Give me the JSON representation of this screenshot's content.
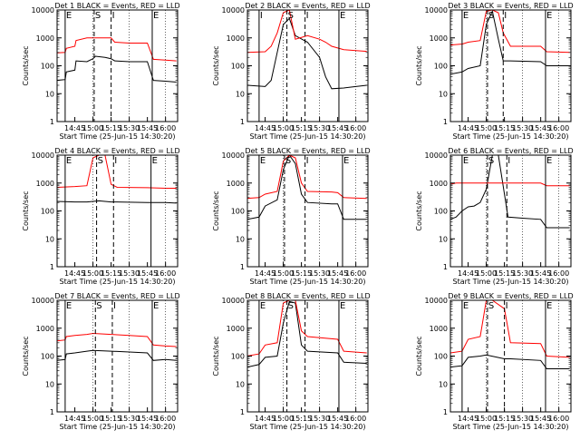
{
  "figure": {
    "x_label": "Start Time (25-Jun-15 14:30:20)",
    "y_label": "Counts/sec"
  },
  "colors": {
    "events": "#000000",
    "lld": "#ff0000",
    "axes": "#000000",
    "background": "#ffffff"
  },
  "chart_data": [
    {
      "type": "line",
      "title": "Det 1  BLACK = Events, RED = LLD",
      "xlabel": "Start Time (25-Jun-15 14:30:20)",
      "ylabel": "Counts/sec",
      "yscale": "log",
      "ylim": [
        1,
        10000
      ],
      "xlim": [
        "14:30:20",
        "16:10:00"
      ],
      "x_ticks": [
        "14:45",
        "15:00",
        "15:15",
        "15:30",
        "15:45",
        "16:00"
      ],
      "y_ticks": [
        "1",
        "10",
        "100",
        "1000",
        "10000"
      ],
      "markers": [
        {
          "time": "14:37",
          "label": "E"
        },
        {
          "time": "15:01",
          "label": "S"
        },
        {
          "time": "15:15",
          "label": "I"
        },
        {
          "time": "15:49",
          "label": "E"
        }
      ],
      "series": [
        {
          "name": "Events",
          "color": "#000000",
          "x": [
            "14:30",
            "14:37",
            "14:38",
            "14:45",
            "14:46",
            "14:55",
            "15:00",
            "15:02",
            "15:10",
            "15:15",
            "15:18",
            "15:30",
            "15:45",
            "15:50",
            "16:00",
            "16:09"
          ],
          "values": [
            30,
            32,
            60,
            70,
            150,
            140,
            180,
            220,
            200,
            180,
            150,
            140,
            140,
            30,
            28,
            26
          ]
        },
        {
          "name": "LLD",
          "color": "#ff0000",
          "x": [
            "14:30",
            "14:37",
            "14:38",
            "14:45",
            "14:46",
            "14:55",
            "15:00",
            "15:02",
            "15:10",
            "15:15",
            "15:18",
            "15:30",
            "15:45",
            "15:50",
            "16:00",
            "16:09"
          ],
          "values": [
            290,
            300,
            420,
            500,
            800,
            1000,
            1000,
            1000,
            1000,
            1000,
            700,
            650,
            650,
            170,
            160,
            150
          ]
        }
      ]
    },
    {
      "type": "line",
      "title": "Det 2  BLACK = Events, RED = LLD",
      "xlabel": "Start Time (25-Jun-15 14:30:20)",
      "ylabel": "Counts/sec",
      "yscale": "log",
      "ylim": [
        1,
        10000
      ],
      "xlim": [
        "14:30:20",
        "16:10:00"
      ],
      "x_ticks": [
        "14:45",
        "15:00",
        "15:15",
        "15:30",
        "15:45",
        "16:00"
      ],
      "y_ticks": [
        "1",
        "10",
        "100",
        "1000",
        "10000"
      ],
      "markers": [
        {
          "time": "14:40",
          "label": "I"
        },
        {
          "time": "15:03",
          "label": "S"
        },
        {
          "time": "15:18",
          "label": "I"
        },
        {
          "time": "15:46",
          "label": "E"
        }
      ],
      "series": [
        {
          "name": "Events",
          "color": "#000000",
          "x": [
            "14:30",
            "14:45",
            "14:50",
            "14:55",
            "15:00",
            "15:05",
            "15:10",
            "15:20",
            "15:30",
            "15:35",
            "15:40",
            "15:50",
            "16:00",
            "16:09"
          ],
          "values": [
            20,
            18,
            30,
            300,
            3000,
            5000,
            1200,
            700,
            200,
            40,
            15,
            16,
            18,
            20
          ]
        },
        {
          "name": "LLD",
          "color": "#ff0000",
          "x": [
            "14:30",
            "14:45",
            "14:50",
            "14:55",
            "15:00",
            "15:05",
            "15:10",
            "15:20",
            "15:30",
            "15:35",
            "15:40",
            "15:50",
            "16:00",
            "16:09"
          ],
          "values": [
            300,
            320,
            500,
            1500,
            8000,
            10000,
            900,
            1200,
            900,
            700,
            500,
            380,
            350,
            330
          ]
        }
      ]
    },
    {
      "type": "line",
      "title": "Det 3  BLACK = Events, RED = LLD",
      "xlabel": "Start Time (25-Jun-15 14:30:20)",
      "ylabel": "Counts/sec",
      "yscale": "log",
      "ylim": [
        1,
        10000
      ],
      "xlim": [
        "14:30:20",
        "16:10:00"
      ],
      "x_ticks": [
        "14:45",
        "15:00",
        "15:15",
        "15:30",
        "15:45",
        "16:00"
      ],
      "y_ticks": [
        "1",
        "10",
        "100",
        "1000",
        "10000"
      ],
      "markers": [
        {
          "time": "14:40",
          "label": "E"
        },
        {
          "time": "15:01",
          "label": "S"
        },
        {
          "time": "15:14",
          "label": "I"
        },
        {
          "time": "15:49",
          "label": "E"
        }
      ],
      "series": [
        {
          "name": "Events",
          "color": "#000000",
          "x": [
            "14:30",
            "14:40",
            "14:45",
            "14:55",
            "15:00",
            "15:05",
            "15:10",
            "15:14",
            "15:20",
            "15:45",
            "15:50",
            "16:09"
          ],
          "values": [
            50,
            60,
            80,
            100,
            3000,
            9000,
            900,
            150,
            150,
            140,
            100,
            100
          ]
        },
        {
          "name": "LLD",
          "color": "#ff0000",
          "x": [
            "14:30",
            "14:40",
            "14:45",
            "14:55",
            "15:00",
            "15:05",
            "15:10",
            "15:14",
            "15:20",
            "15:45",
            "15:50",
            "16:09"
          ],
          "values": [
            550,
            600,
            700,
            800,
            9000,
            10000,
            8000,
            1500,
            500,
            500,
            320,
            300
          ]
        }
      ]
    },
    {
      "type": "line",
      "title": "Det 4  BLACK = Events, RED = LLD",
      "xlabel": "Start Time (25-Jun-15 14:30:20)",
      "ylabel": "Counts/sec",
      "yscale": "log",
      "ylim": [
        1,
        10000
      ],
      "xlim": [
        "14:30:20",
        "16:10:00"
      ],
      "x_ticks": [
        "14:45",
        "15:00",
        "15:15",
        "15:30",
        "15:45",
        "16:00"
      ],
      "y_ticks": [
        "1",
        "10",
        "100",
        "1000",
        "10000"
      ],
      "markers": [
        {
          "time": "14:37",
          "label": "E"
        },
        {
          "time": "15:03",
          "label": "S"
        },
        {
          "time": "15:17",
          "label": "I"
        },
        {
          "time": "15:48",
          "label": "E"
        }
      ],
      "series": [
        {
          "name": "Events",
          "color": "#000000",
          "x": [
            "14:30",
            "14:45",
            "14:55",
            "15:00",
            "15:05",
            "15:10",
            "15:15",
            "15:20",
            "15:45",
            "16:00",
            "16:09"
          ],
          "values": [
            220,
            210,
            210,
            220,
            230,
            220,
            210,
            210,
            200,
            200,
            190
          ]
        },
        {
          "name": "LLD",
          "color": "#ff0000",
          "x": [
            "14:30",
            "14:45",
            "14:55",
            "15:00",
            "15:05",
            "15:10",
            "15:15",
            "15:20",
            "15:45",
            "16:00",
            "16:09"
          ],
          "values": [
            700,
            750,
            800,
            8000,
            10000,
            10000,
            900,
            700,
            680,
            650,
            650
          ]
        }
      ]
    },
    {
      "type": "line",
      "title": "Det 5  BLACK = Events, RED = LLD",
      "xlabel": "Start Time (25-Jun-15 14:30:20)",
      "ylabel": "Counts/sec",
      "yscale": "log",
      "ylim": [
        1,
        10000
      ],
      "xlim": [
        "14:30:20",
        "16:10:00"
      ],
      "x_ticks": [
        "14:45",
        "15:00",
        "15:15",
        "15:30",
        "15:45",
        "16:00"
      ],
      "y_ticks": [
        "1",
        "10",
        "100",
        "1000",
        "10000"
      ],
      "markers": [
        {
          "time": "14:40",
          "label": "E"
        },
        {
          "time": "15:01",
          "label": "S"
        },
        {
          "time": "15:18",
          "label": "I"
        },
        {
          "time": "15:49",
          "label": "E"
        }
      ],
      "series": [
        {
          "name": "Events",
          "color": "#000000",
          "x": [
            "14:30",
            "14:40",
            "14:45",
            "14:55",
            "15:00",
            "15:05",
            "15:10",
            "15:15",
            "15:20",
            "15:40",
            "15:45",
            "15:50",
            "16:09"
          ],
          "values": [
            50,
            60,
            150,
            250,
            3000,
            10000,
            5000,
            400,
            200,
            180,
            180,
            50,
            50
          ]
        },
        {
          "name": "LLD",
          "color": "#ff0000",
          "x": [
            "14:30",
            "14:40",
            "14:45",
            "14:55",
            "15:00",
            "15:05",
            "15:10",
            "15:15",
            "15:20",
            "15:40",
            "15:45",
            "15:50",
            "16:09"
          ],
          "values": [
            280,
            300,
            400,
            500,
            6000,
            10000,
            8000,
            1000,
            500,
            480,
            450,
            300,
            280
          ]
        }
      ]
    },
    {
      "type": "line",
      "title": "Det 6  BLACK = Events, RED = LLD",
      "xlabel": "Start Time (25-Jun-15 14:30:20)",
      "ylabel": "Counts/sec",
      "yscale": "log",
      "ylim": [
        1,
        10000
      ],
      "xlim": [
        "14:30:20",
        "16:10:00"
      ],
      "x_ticks": [
        "14:45",
        "15:00",
        "15:15",
        "15:30",
        "15:45",
        "16:00"
      ],
      "y_ticks": [
        "1",
        "10",
        "100",
        "1000",
        "10000"
      ],
      "markers": [
        {
          "time": "14:40",
          "label": "E"
        },
        {
          "time": "15:01",
          "label": "S"
        },
        {
          "time": "15:17",
          "label": "I"
        },
        {
          "time": "15:49",
          "label": "E"
        }
      ],
      "series": [
        {
          "name": "Events",
          "color": "#000000",
          "x": [
            "14:30",
            "14:35",
            "14:40",
            "14:45",
            "14:50",
            "14:55",
            "15:00",
            "15:05",
            "15:10",
            "15:18",
            "15:30",
            "15:45",
            "15:50",
            "16:09"
          ],
          "values": [
            50,
            60,
            100,
            140,
            150,
            200,
            600,
            10000,
            10000,
            60,
            55,
            50,
            25,
            25
          ]
        },
        {
          "name": "LLD",
          "color": "#ff0000",
          "x": [
            "14:30",
            "14:35",
            "14:40",
            "14:45",
            "14:50",
            "14:55",
            "15:00",
            "15:05",
            "15:10",
            "15:18",
            "15:30",
            "15:45",
            "15:50",
            "16:09"
          ],
          "values": [
            900,
            1000,
            1000,
            1000,
            1000,
            1000,
            1000,
            1000,
            1000,
            1000,
            1000,
            1000,
            800,
            800
          ]
        }
      ]
    },
    {
      "type": "line",
      "title": "Det 7  BLACK = Events, RED = LLD",
      "xlabel": "Start Time (25-Jun-15 14:30:20)",
      "ylabel": "Counts/sec",
      "yscale": "log",
      "ylim": [
        1,
        10000
      ],
      "xlim": [
        "14:30:20",
        "16:10:00"
      ],
      "x_ticks": [
        "14:45",
        "15:00",
        "15:15",
        "15:30",
        "15:45",
        "16:00"
      ],
      "y_ticks": [
        "1",
        "10",
        "100",
        "1000",
        "10000"
      ],
      "markers": [
        {
          "time": "14:37",
          "label": "E"
        },
        {
          "time": "15:02",
          "label": "S"
        },
        {
          "time": "15:16",
          "label": "I"
        },
        {
          "time": "15:49",
          "label": "E"
        }
      ],
      "series": [
        {
          "name": "Events",
          "color": "#000000",
          "x": [
            "14:30",
            "14:37",
            "14:38",
            "14:45",
            "14:55",
            "15:00",
            "15:15",
            "15:30",
            "15:45",
            "15:50",
            "16:00",
            "16:09"
          ],
          "values": [
            70,
            75,
            120,
            130,
            150,
            160,
            150,
            140,
            130,
            70,
            75,
            70
          ]
        },
        {
          "name": "LLD",
          "color": "#ff0000",
          "x": [
            "14:30",
            "14:37",
            "14:38",
            "14:45",
            "14:55",
            "15:00",
            "15:15",
            "15:30",
            "15:45",
            "15:50",
            "16:00",
            "16:09"
          ],
          "values": [
            350,
            380,
            500,
            550,
            600,
            650,
            600,
            550,
            500,
            250,
            230,
            220
          ]
        }
      ]
    },
    {
      "type": "line",
      "title": "Det 8  BLACK = Events, RED = LLD",
      "xlabel": "Start Time (25-Jun-15 14:30:20)",
      "ylabel": "Counts/sec",
      "yscale": "log",
      "ylim": [
        1,
        10000
      ],
      "xlim": [
        "14:30:20",
        "16:10:00"
      ],
      "x_ticks": [
        "14:45",
        "15:00",
        "15:15",
        "15:30",
        "15:45",
        "16:00"
      ],
      "y_ticks": [
        "1",
        "10",
        "100",
        "1000",
        "10000"
      ],
      "markers": [
        {
          "time": "14:40",
          "label": "E"
        },
        {
          "time": "15:03",
          "label": "S"
        },
        {
          "time": "15:18",
          "label": "I"
        },
        {
          "time": "15:46",
          "label": "E"
        }
      ],
      "series": [
        {
          "name": "Events",
          "color": "#000000",
          "x": [
            "14:30",
            "14:40",
            "14:45",
            "14:55",
            "15:00",
            "15:05",
            "15:10",
            "15:15",
            "15:20",
            "15:45",
            "15:50",
            "16:09"
          ],
          "values": [
            40,
            50,
            90,
            100,
            1500,
            9000,
            8000,
            250,
            150,
            130,
            60,
            55
          ]
        },
        {
          "name": "LLD",
          "color": "#ff0000",
          "x": [
            "14:30",
            "14:40",
            "14:45",
            "14:55",
            "15:00",
            "15:05",
            "15:10",
            "15:15",
            "15:20",
            "15:45",
            "15:50",
            "16:09"
          ],
          "values": [
            100,
            120,
            250,
            300,
            8000,
            10000,
            10000,
            800,
            500,
            400,
            150,
            130
          ]
        }
      ]
    },
    {
      "type": "line",
      "title": "Det 9  BLACK = Events, RED = LLD",
      "xlabel": "Start Time (25-Jun-15 14:30:20)",
      "ylabel": "Counts/sec",
      "yscale": "log",
      "ylim": [
        1,
        10000
      ],
      "xlim": [
        "14:30:20",
        "16:10:00"
      ],
      "x_ticks": [
        "14:45",
        "15:00",
        "15:15",
        "15:30",
        "15:45",
        "16:00"
      ],
      "y_ticks": [
        "1",
        "10",
        "100",
        "1000",
        "10000"
      ],
      "markers": [
        {
          "time": "14:40",
          "label": "E"
        },
        {
          "time": "15:01",
          "label": "S"
        },
        {
          "time": "15:15",
          "label": "I"
        },
        {
          "time": "15:49",
          "label": "E"
        }
      ],
      "series": [
        {
          "name": "Events",
          "color": "#000000",
          "x": [
            "14:30",
            "14:40",
            "14:45",
            "14:55",
            "15:00",
            "15:15",
            "15:20",
            "15:45",
            "15:50",
            "16:09"
          ],
          "values": [
            40,
            45,
            90,
            100,
            110,
            80,
            80,
            70,
            35,
            35
          ]
        },
        {
          "name": "LLD",
          "color": "#ff0000",
          "x": [
            "14:30",
            "14:40",
            "14:45",
            "14:55",
            "15:00",
            "15:05",
            "15:15",
            "15:20",
            "15:45",
            "15:50",
            "16:09"
          ],
          "values": [
            130,
            150,
            400,
            500,
            10000,
            10000,
            5000,
            300,
            280,
            100,
            90
          ]
        }
      ]
    }
  ]
}
